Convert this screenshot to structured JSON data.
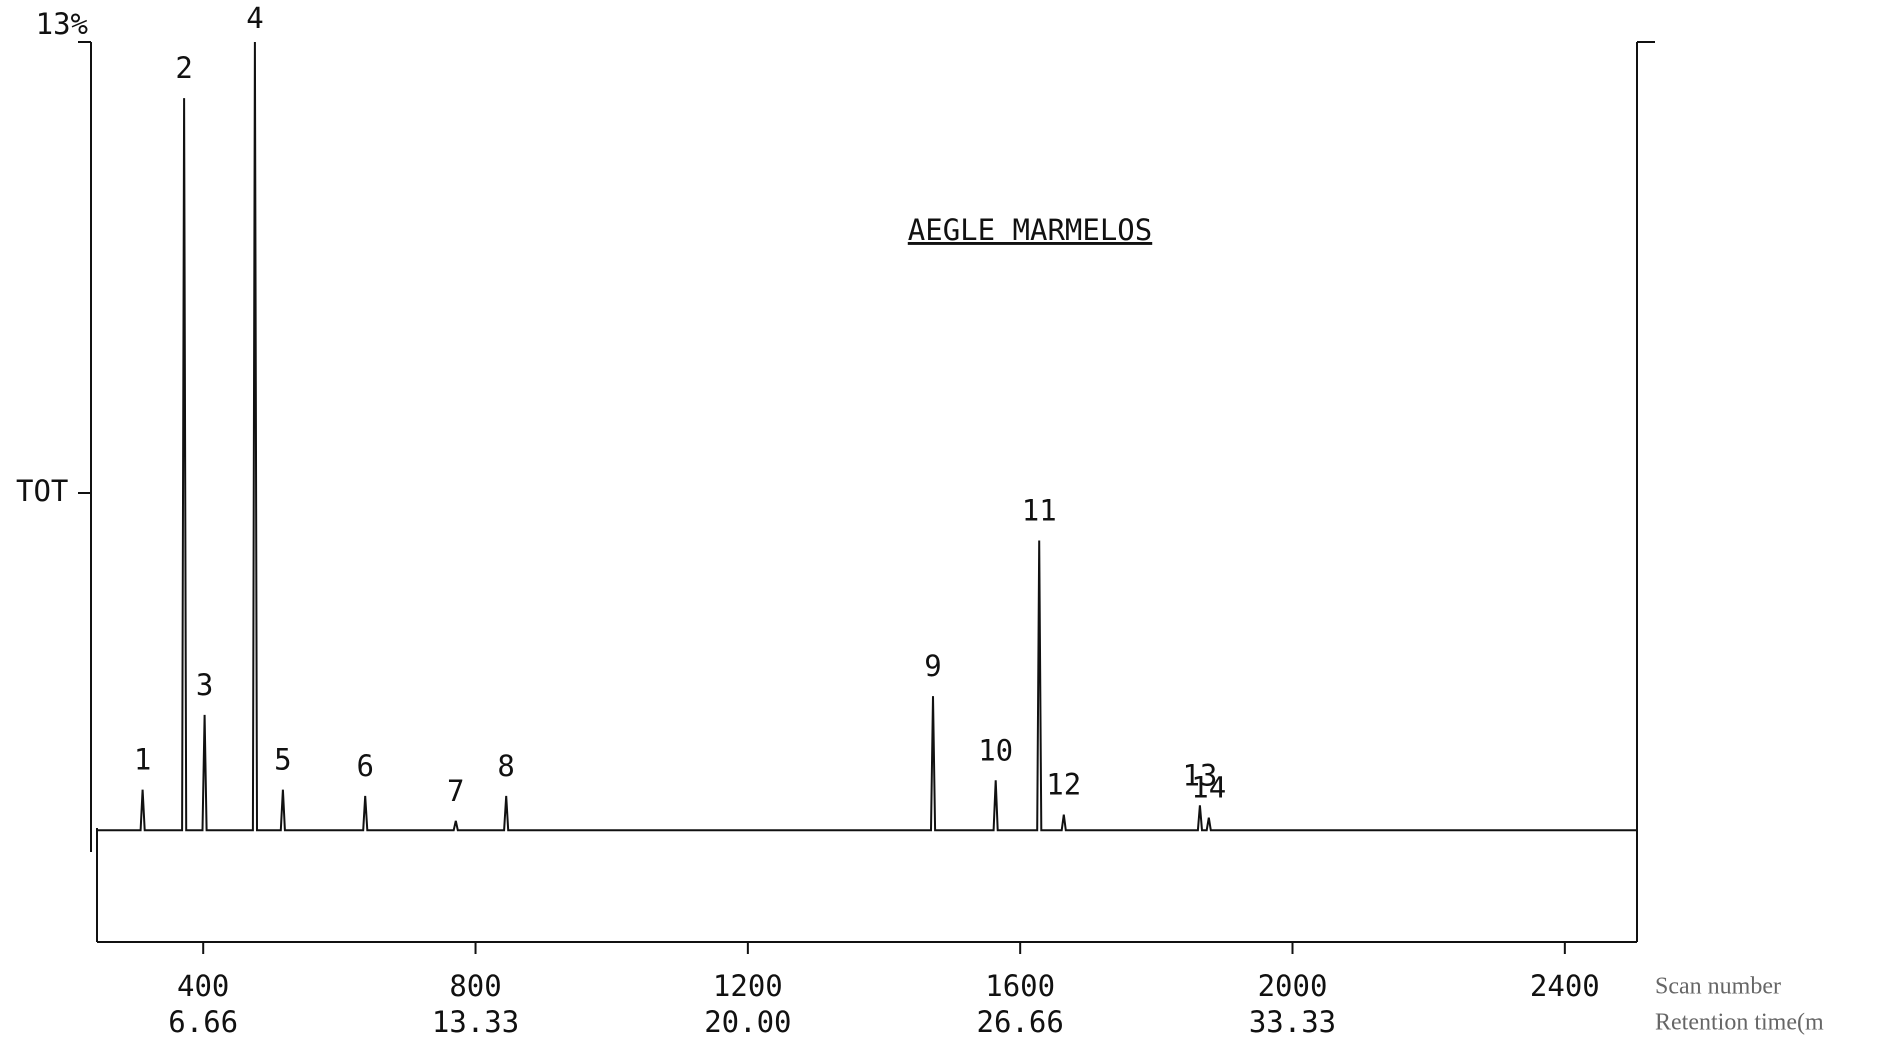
{
  "chart_data": {
    "type": "line",
    "title": "AEGLE MARMELOS",
    "x_label": "Scan number",
    "x2_label": "Retention time(m",
    "y_label": "TOT",
    "color": "#111111",
    "xlim": [
      244,
      2506
    ],
    "xticks": [
      400,
      800,
      1200,
      1600,
      2000,
      2400
    ],
    "rt_labels": [
      "6.66",
      "13.33",
      "20.00",
      "26.66",
      "33.33"
    ],
    "ylim": [
      0,
      13
    ],
    "yticks": [
      {
        "value": 13,
        "label": "13%"
      }
    ],
    "x": [
      244,
      308,
      311,
      314,
      369,
      372,
      375,
      399,
      402,
      405,
      473,
      476,
      479,
      514,
      517,
      520,
      635,
      638,
      641,
      768,
      771,
      774,
      842,
      845,
      848,
      1469,
      1472,
      1475,
      1561,
      1564,
      1567,
      1625,
      1628,
      1631,
      1661,
      1664,
      1667,
      1861,
      1864,
      1867,
      1874,
      1877,
      1880,
      2506
    ],
    "values": [
      0.35,
      0.35,
      1.0,
      0.35,
      0.35,
      12.1,
      0.35,
      0.35,
      2.2,
      0.35,
      0.35,
      13,
      0.35,
      0.35,
      1.0,
      0.35,
      0.35,
      0.9,
      0.35,
      0.35,
      0.5,
      0.35,
      0.35,
      0.9,
      0.35,
      0.35,
      2.5,
      0.35,
      0.35,
      1.15,
      0.35,
      0.35,
      5.0,
      0.35,
      0.35,
      0.6,
      0.35,
      0.35,
      0.75,
      0.35,
      0.35,
      0.55,
      0.35,
      0.35
    ],
    "labels": [
      null,
      null,
      "1",
      null,
      null,
      "2",
      null,
      null,
      "3",
      null,
      null,
      "4",
      null,
      null,
      "5",
      null,
      null,
      "6",
      null,
      null,
      "7",
      null,
      null,
      "8",
      null,
      null,
      "9",
      null,
      null,
      "10",
      null,
      null,
      "11",
      null,
      null,
      "12",
      null,
      null,
      "13",
      null,
      null,
      "14",
      null,
      null
    ]
  }
}
